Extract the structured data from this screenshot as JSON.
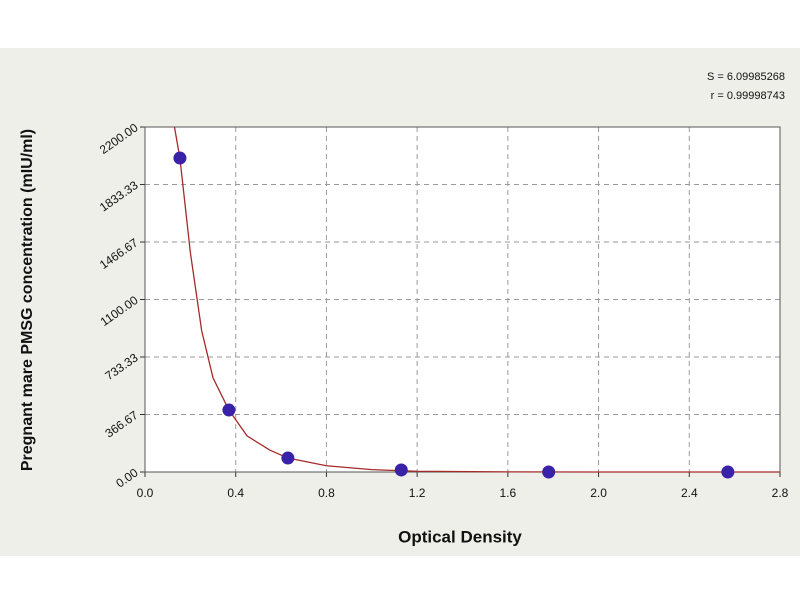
{
  "chart_data": {
    "type": "scatter",
    "xlabel": "Optical Density",
    "ylabel": "Pregnant mare PMSG concentration (mIU/ml)",
    "annotations": [
      "S = 6.09985268",
      "r = 0.99998743"
    ],
    "xlim": [
      0,
      2.8
    ],
    "xticks": [
      {
        "value": 0,
        "label": "0.0"
      },
      0.4,
      0.8,
      1.2,
      1.6,
      {
        "value": 2,
        "label": "2.0"
      },
      2.4,
      2.8
    ],
    "ylim": [
      0,
      2200
    ],
    "yticks": [
      {
        "value": 0,
        "label": "0.00"
      },
      366.67,
      733.33,
      {
        "value": 1100,
        "label": "1100.00"
      },
      1466.67,
      1833.33,
      {
        "value": 2200,
        "label": "2200.00"
      }
    ],
    "grid": true,
    "series": [
      {
        "type": "scatter",
        "color": "#3a22a8",
        "x": [
          0.154,
          0.37,
          0.63,
          1.13,
          1.78,
          2.57
        ],
        "values": [
          2002,
          395,
          89,
          13,
          0,
          0
        ]
      },
      {
        "type": "line",
        "color": "#a52a2a",
        "x": [
          0.13,
          0.154,
          0.2,
          0.25,
          0.3,
          0.37,
          0.45,
          0.55,
          0.63,
          0.8,
          1.0,
          1.2,
          1.6,
          2.0,
          2.8
        ],
        "values": [
          2200,
          2000,
          1400,
          900,
          600,
          395,
          230,
          140,
          89,
          40,
          15,
          5,
          1,
          0,
          0
        ]
      }
    ]
  }
}
